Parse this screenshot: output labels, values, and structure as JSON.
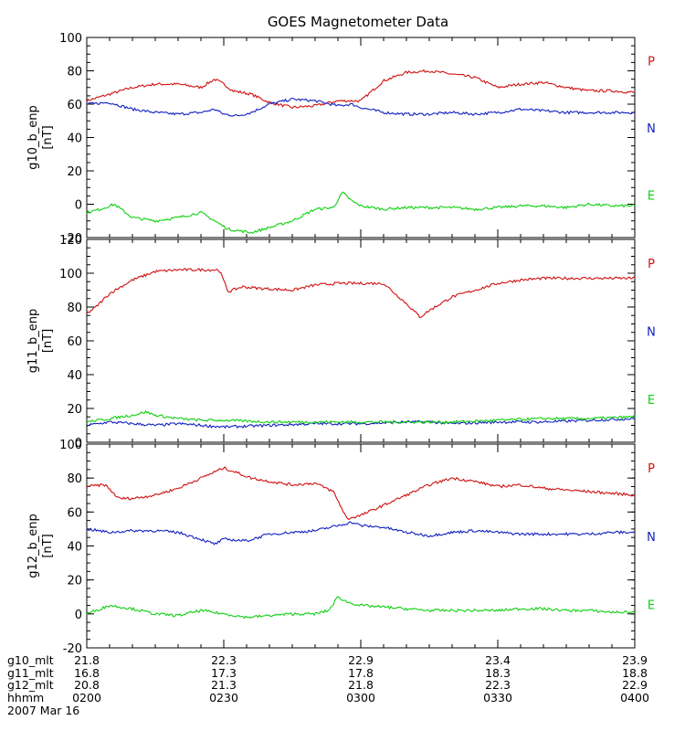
{
  "chart_data": {
    "title": "GOES Magnetometer Data",
    "type": "line",
    "x": {
      "unit": "minutes after 0200 UT",
      "range": [
        0,
        120
      ],
      "major_ticks": [
        0,
        30,
        60,
        90,
        120
      ],
      "minor_step": 5,
      "rows": [
        {
          "label": "g10_mlt",
          "values": [
            "21.8",
            "22.3",
            "22.9",
            "23.4",
            "23.9"
          ]
        },
        {
          "label": "g11_mlt",
          "values": [
            "16.8",
            "17.3",
            "17.8",
            "18.3",
            "18.8"
          ]
        },
        {
          "label": "g12_mlt",
          "values": [
            "20.8",
            "21.3",
            "21.8",
            "22.3",
            "22.9"
          ]
        },
        {
          "label": "hhmm",
          "values": [
            "0200",
            "0230",
            "0300",
            "0330",
            "0400"
          ]
        }
      ],
      "date_label": "2007 Mar 16"
    },
    "panels": [
      {
        "ylabel": "g10_b_enp",
        "yunit": "[nT]",
        "ylim": [
          -20,
          100
        ],
        "yticks": [
          -20,
          0,
          20,
          40,
          60,
          80,
          100
        ],
        "legend": [
          "P",
          "N",
          "E"
        ],
        "series": [
          {
            "name": "P",
            "color": "#d01010",
            "noise": 0.8,
            "t": [
              0,
              5,
              10,
              15,
              20,
              25,
              28,
              30,
              32,
              36,
              40,
              45,
              50,
              55,
              60,
              65,
              70,
              75,
              80,
              85,
              90,
              95,
              100,
              105,
              110,
              115,
              120
            ],
            "v": [
              62,
              66,
              70,
              72,
              72,
              70,
              75,
              72,
              68,
              66,
              61,
              58,
              59,
              62,
              62,
              74,
              79,
              80,
              78,
              76,
              70,
              72,
              73,
              70,
              68,
              68,
              67
            ]
          },
          {
            "name": "N",
            "color": "#1020c0",
            "noise": 0.8,
            "t": [
              0,
              5,
              10,
              15,
              20,
              25,
              28,
              30,
              33,
              36,
              40,
              45,
              50,
              55,
              58,
              60,
              65,
              70,
              75,
              80,
              85,
              90,
              95,
              100,
              105,
              110,
              115,
              120
            ],
            "v": [
              60,
              61,
              57,
              55,
              54,
              55,
              57,
              54,
              53,
              55,
              60,
              63,
              62,
              59,
              60,
              58,
              55,
              54,
              54,
              55,
              54,
              55,
              57,
              56,
              55,
              55,
              55,
              55
            ]
          },
          {
            "name": "E",
            "color": "#10d010",
            "noise": 0.8,
            "t": [
              0,
              3,
              6,
              10,
              15,
              20,
              25,
              28,
              31,
              36,
              40,
              45,
              50,
              54,
              56,
              58,
              60,
              65,
              70,
              75,
              80,
              85,
              90,
              95,
              100,
              105,
              110,
              115,
              120
            ],
            "v": [
              -5,
              -3,
              0,
              -8,
              -10,
              -8,
              -5,
              -10,
              -15,
              -17,
              -14,
              -10,
              -3,
              -2,
              7,
              2,
              -1,
              -3,
              -2,
              -2,
              -2,
              -3,
              -2,
              -1,
              -1,
              -2,
              0,
              -1,
              -1
            ]
          }
        ]
      },
      {
        "ylabel": "g11_b_enp",
        "yunit": "[nT]",
        "ylim": [
          0,
          120
        ],
        "yticks": [
          0,
          20,
          40,
          60,
          80,
          100,
          120
        ],
        "legend": [
          "P",
          "N",
          "E"
        ],
        "series": [
          {
            "name": "P",
            "color": "#d01010",
            "noise": 0.8,
            "t": [
              0,
              2,
              5,
              10,
              15,
              20,
              25,
              29,
              31,
              34,
              38,
              45,
              50,
              55,
              60,
              65,
              70,
              73,
              75,
              80,
              85,
              90,
              95,
              100,
              105,
              110,
              115,
              120
            ],
            "v": [
              76,
              80,
              88,
              96,
              101,
              102,
              102,
              102,
              89,
              92,
              91,
              90,
              93,
              94,
              94,
              94,
              82,
              74,
              78,
              86,
              90,
              94,
              96,
              97,
              97,
              97,
              97,
              97
            ]
          },
          {
            "name": "N",
            "color": "#1020c0",
            "noise": 0.8,
            "t": [
              0,
              5,
              10,
              15,
              20,
              25,
              30,
              40,
              50,
              60,
              70,
              75,
              80,
              90,
              100,
              110,
              120
            ],
            "v": [
              10,
              12,
              11,
              10,
              11,
              10,
              9,
              10,
              11,
              11,
              12,
              12,
              11,
              12,
              12,
              13,
              14
            ]
          },
          {
            "name": "E",
            "color": "#10d010",
            "noise": 0.8,
            "t": [
              0,
              5,
              10,
              13,
              15,
              20,
              25,
              30,
              40,
              50,
              60,
              70,
              80,
              90,
              100,
              110,
              120
            ],
            "v": [
              12,
              14,
              16,
              18,
              16,
              14,
              13,
              13,
              12,
              12,
              12,
              12,
              12,
              13,
              14,
              14,
              15
            ]
          }
        ]
      },
      {
        "ylabel": "g12_b_enp",
        "yunit": "[nT]",
        "ylim": [
          -20,
          100
        ],
        "yticks": [
          -20,
          0,
          20,
          40,
          60,
          80,
          100
        ],
        "legend": [
          "P",
          "N",
          "E"
        ],
        "series": [
          {
            "name": "P",
            "color": "#d01010",
            "noise": 0.8,
            "t": [
              0,
              4,
              7,
              10,
              15,
              20,
              25,
              30,
              33,
              36,
              40,
              45,
              50,
              54,
              57,
              60,
              65,
              70,
              75,
              80,
              85,
              90,
              95,
              100,
              105,
              110,
              115,
              120
            ],
            "v": [
              75,
              76,
              68,
              68,
              70,
              74,
              80,
              86,
              83,
              80,
              78,
              76,
              77,
              72,
              56,
              58,
              64,
              70,
              76,
              80,
              78,
              75,
              76,
              74,
              73,
              72,
              71,
              70
            ]
          },
          {
            "name": "N",
            "color": "#1020c0",
            "noise": 0.8,
            "t": [
              0,
              5,
              10,
              15,
              20,
              25,
              28,
              30,
              35,
              40,
              45,
              50,
              55,
              58,
              60,
              65,
              70,
              75,
              80,
              85,
              90,
              95,
              100,
              105,
              110,
              115,
              120
            ],
            "v": [
              50,
              48,
              49,
              49,
              48,
              44,
              41,
              44,
              43,
              47,
              48,
              49,
              52,
              54,
              52,
              51,
              48,
              46,
              48,
              49,
              48,
              47,
              47,
              47,
              47,
              48,
              48
            ]
          },
          {
            "name": "E",
            "color": "#10d010",
            "noise": 0.8,
            "t": [
              0,
              5,
              10,
              15,
              20,
              25,
              30,
              35,
              40,
              45,
              50,
              53,
              55,
              57,
              60,
              65,
              70,
              75,
              80,
              85,
              90,
              95,
              100,
              105,
              110,
              115,
              120
            ],
            "v": [
              0,
              5,
              3,
              0,
              -1,
              2,
              0,
              -2,
              -1,
              0,
              0,
              2,
              10,
              7,
              5,
              4,
              3,
              2,
              2,
              2,
              2,
              3,
              3,
              2,
              2,
              1,
              1
            ]
          }
        ]
      }
    ]
  }
}
